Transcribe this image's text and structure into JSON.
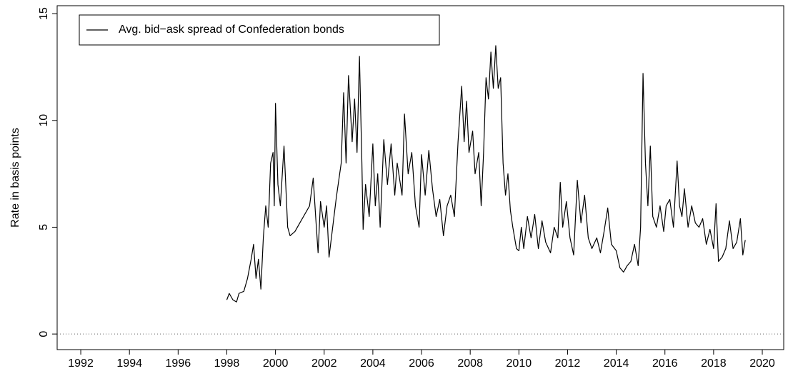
{
  "chart_data": {
    "type": "line",
    "y_label": "Rate in basis points",
    "x": [
      1998.0,
      1998.1,
      1998.25,
      1998.4,
      1998.5,
      1998.7,
      1998.85,
      1999.0,
      1999.1,
      1999.2,
      1999.3,
      1999.4,
      1999.5,
      1999.6,
      1999.7,
      1999.8,
      1999.9,
      1999.95,
      2000.0,
      2000.1,
      2000.2,
      2000.35,
      2000.5,
      2000.6,
      2000.8,
      2001.0,
      2001.2,
      2001.4,
      2001.55,
      2001.65,
      2001.75,
      2001.85,
      2002.0,
      2002.1,
      2002.2,
      2002.35,
      2002.5,
      2002.7,
      2002.8,
      2002.9,
      2003.0,
      2003.15,
      2003.25,
      2003.35,
      2003.45,
      2003.55,
      2003.6,
      2003.7,
      2003.85,
      2004.0,
      2004.1,
      2004.2,
      2004.3,
      2004.45,
      2004.6,
      2004.75,
      2004.9,
      2005.0,
      2005.2,
      2005.3,
      2005.45,
      2005.6,
      2005.75,
      2005.9,
      2006.0,
      2006.15,
      2006.3,
      2006.45,
      2006.6,
      2006.75,
      2006.9,
      2007.05,
      2007.2,
      2007.35,
      2007.5,
      2007.65,
      2007.75,
      2007.85,
      2007.95,
      2008.1,
      2008.2,
      2008.35,
      2008.45,
      2008.55,
      2008.65,
      2008.75,
      2008.85,
      2008.95,
      2009.05,
      2009.15,
      2009.25,
      2009.35,
      2009.45,
      2009.55,
      2009.65,
      2009.75,
      2009.9,
      2010.0,
      2010.1,
      2010.2,
      2010.35,
      2010.5,
      2010.65,
      2010.8,
      2010.95,
      2011.1,
      2011.3,
      2011.45,
      2011.6,
      2011.7,
      2011.8,
      2011.95,
      2012.1,
      2012.25,
      2012.4,
      2012.55,
      2012.7,
      2012.85,
      2013.0,
      2013.2,
      2013.35,
      2013.5,
      2013.65,
      2013.8,
      2014.0,
      2014.15,
      2014.3,
      2014.45,
      2014.6,
      2014.75,
      2014.9,
      2015.0,
      2015.1,
      2015.2,
      2015.3,
      2015.4,
      2015.5,
      2015.65,
      2015.8,
      2015.95,
      2016.05,
      2016.2,
      2016.35,
      2016.5,
      2016.6,
      2016.7,
      2016.8,
      2016.95,
      2017.1,
      2017.25,
      2017.4,
      2017.55,
      2017.7,
      2017.85,
      2018.0,
      2018.1,
      2018.2,
      2018.35,
      2018.5,
      2018.65,
      2018.8,
      2018.95,
      2019.1,
      2019.2,
      2019.3
    ],
    "series": [
      {
        "name": "Avg. bid−ask spread of Confederation bonds",
        "color": "#000000",
        "values": [
          1.6,
          1.9,
          1.6,
          1.5,
          1.9,
          2.0,
          2.6,
          3.5,
          4.2,
          2.6,
          3.5,
          2.1,
          4.5,
          6.0,
          5.0,
          8.0,
          8.5,
          6.0,
          10.8,
          7.0,
          6.0,
          8.8,
          5.0,
          4.6,
          4.8,
          5.2,
          5.6,
          6.0,
          7.3,
          5.5,
          3.8,
          6.2,
          5.0,
          6.0,
          3.6,
          5.0,
          6.4,
          8.0,
          11.3,
          8.0,
          12.1,
          9.0,
          11.0,
          8.5,
          13.0,
          8.0,
          4.9,
          7.0,
          5.5,
          8.9,
          6.0,
          7.5,
          5.0,
          9.1,
          7.0,
          8.9,
          6.5,
          8.0,
          6.5,
          10.3,
          7.5,
          8.5,
          6.0,
          5.0,
          8.4,
          6.5,
          8.6,
          6.8,
          5.5,
          6.3,
          4.6,
          6.0,
          6.5,
          5.5,
          9.0,
          11.6,
          9.0,
          10.9,
          8.5,
          9.5,
          7.5,
          8.5,
          6.0,
          8.5,
          12.0,
          11.0,
          13.2,
          11.5,
          13.5,
          11.5,
          12.0,
          8.0,
          6.5,
          7.5,
          5.8,
          5.0,
          4.0,
          3.9,
          5.0,
          4.0,
          5.5,
          4.5,
          5.6,
          4.0,
          5.3,
          4.3,
          3.8,
          5.0,
          4.5,
          7.1,
          5.0,
          6.2,
          4.5,
          3.7,
          7.2,
          5.2,
          6.5,
          4.5,
          4.0,
          4.5,
          3.8,
          4.8,
          5.9,
          4.2,
          3.9,
          3.1,
          2.9,
          3.2,
          3.4,
          4.2,
          3.2,
          5.0,
          12.2,
          8.0,
          6.0,
          8.8,
          5.5,
          5.0,
          6.0,
          4.8,
          6.0,
          6.3,
          5.0,
          8.1,
          6.0,
          5.5,
          6.8,
          5.0,
          6.0,
          5.2,
          5.0,
          5.4,
          4.2,
          4.9,
          4.0,
          6.1,
          3.4,
          3.6,
          4.0,
          5.3,
          4.0,
          4.3,
          5.4,
          3.7,
          4.4
        ]
      }
    ],
    "xlim": [
      1991.03,
      2020.88
    ],
    "xticks": [
      1992,
      1994,
      1996,
      1998,
      2000,
      2002,
      2004,
      2006,
      2008,
      2010,
      2012,
      2014,
      2016,
      2018,
      2020
    ],
    "ylim": [
      -0.73,
      15.37
    ],
    "yticks": [
      0,
      5,
      10,
      15
    ],
    "reference_line": 0,
    "legend": "top-left"
  }
}
